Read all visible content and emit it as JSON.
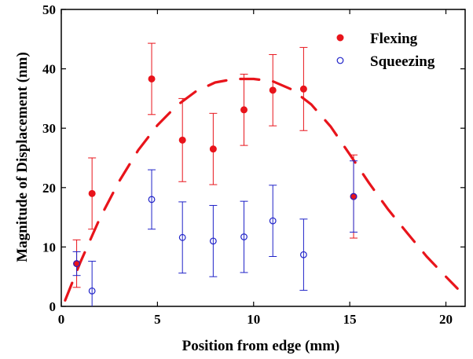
{
  "chart_data": {
    "type": "scatter",
    "title": "",
    "xlabel": "Position from edge (mm)",
    "ylabel": "Magnitude of Displacement (nm)",
    "xlim": [
      0,
      21
    ],
    "ylim": [
      0,
      50
    ],
    "xticks": [
      0,
      5,
      10,
      15,
      20
    ],
    "yticks": [
      0,
      10,
      20,
      30,
      40,
      50
    ],
    "xtick_labels": [
      "0",
      "5",
      "10",
      "15",
      "20"
    ],
    "ytick_labels": [
      "0",
      "10",
      "20",
      "30",
      "40",
      "50"
    ],
    "grid": false,
    "legend_position": "top-right",
    "series": [
      {
        "name": "Flexing",
        "marker": "filled-circle",
        "color": "#e8141b",
        "points": [
          {
            "x": 0.8,
            "y": 7.2,
            "err_low": 4.0,
            "err_high": 4.0
          },
          {
            "x": 1.6,
            "y": 19.0,
            "err_low": 6.0,
            "err_high": 6.0
          },
          {
            "x": 4.7,
            "y": 38.3,
            "err_low": 6.0,
            "err_high": 6.0
          },
          {
            "x": 6.3,
            "y": 28.0,
            "err_low": 7.0,
            "err_high": 7.0
          },
          {
            "x": 7.9,
            "y": 26.5,
            "err_low": 6.0,
            "err_high": 6.0
          },
          {
            "x": 9.5,
            "y": 33.1,
            "err_low": 6.0,
            "err_high": 6.0
          },
          {
            "x": 11.0,
            "y": 36.4,
            "err_low": 6.0,
            "err_high": 6.0
          },
          {
            "x": 12.6,
            "y": 36.6,
            "err_low": 7.0,
            "err_high": 7.0
          },
          {
            "x": 15.2,
            "y": 18.5,
            "err_low": 7.0,
            "err_high": 7.0
          }
        ]
      },
      {
        "name": "Squeezing",
        "marker": "open-circle",
        "color": "#1f22c8",
        "points": [
          {
            "x": 0.8,
            "y": 7.2,
            "err_low": 2.0,
            "err_high": 2.0
          },
          {
            "x": 1.6,
            "y": 2.6,
            "err_low": 5.0,
            "err_high": 5.0
          },
          {
            "x": 4.7,
            "y": 18.0,
            "err_low": 5.0,
            "err_high": 5.0
          },
          {
            "x": 6.3,
            "y": 11.6,
            "err_low": 6.0,
            "err_high": 6.0
          },
          {
            "x": 7.9,
            "y": 11.0,
            "err_low": 6.0,
            "err_high": 6.0
          },
          {
            "x": 9.5,
            "y": 11.7,
            "err_low": 6.0,
            "err_high": 6.0
          },
          {
            "x": 11.0,
            "y": 14.4,
            "err_low": 6.0,
            "err_high": 6.0
          },
          {
            "x": 12.6,
            "y": 8.7,
            "err_low": 6.0,
            "err_high": 6.0
          },
          {
            "x": 15.2,
            "y": 18.5,
            "err_low": 6.0,
            "err_high": 6.0
          }
        ]
      }
    ],
    "fit_curve": {
      "style": "dashed",
      "color": "#e8141b",
      "x": [
        0.2,
        1.0,
        2.0,
        3.0,
        4.0,
        5.0,
        6.0,
        7.0,
        8.0,
        9.0,
        10.0,
        11.0,
        12.0,
        13.0,
        14.0,
        15.0,
        16.0,
        17.0,
        18.0,
        19.0,
        20.0,
        20.6
      ],
      "y": [
        1.0,
        7.5,
        14.8,
        21.0,
        26.3,
        30.5,
        33.8,
        36.2,
        37.7,
        38.3,
        38.3,
        37.9,
        36.5,
        34.0,
        30.3,
        25.6,
        20.8,
        16.3,
        12.3,
        8.4,
        5.0,
        3.0
      ]
    }
  }
}
